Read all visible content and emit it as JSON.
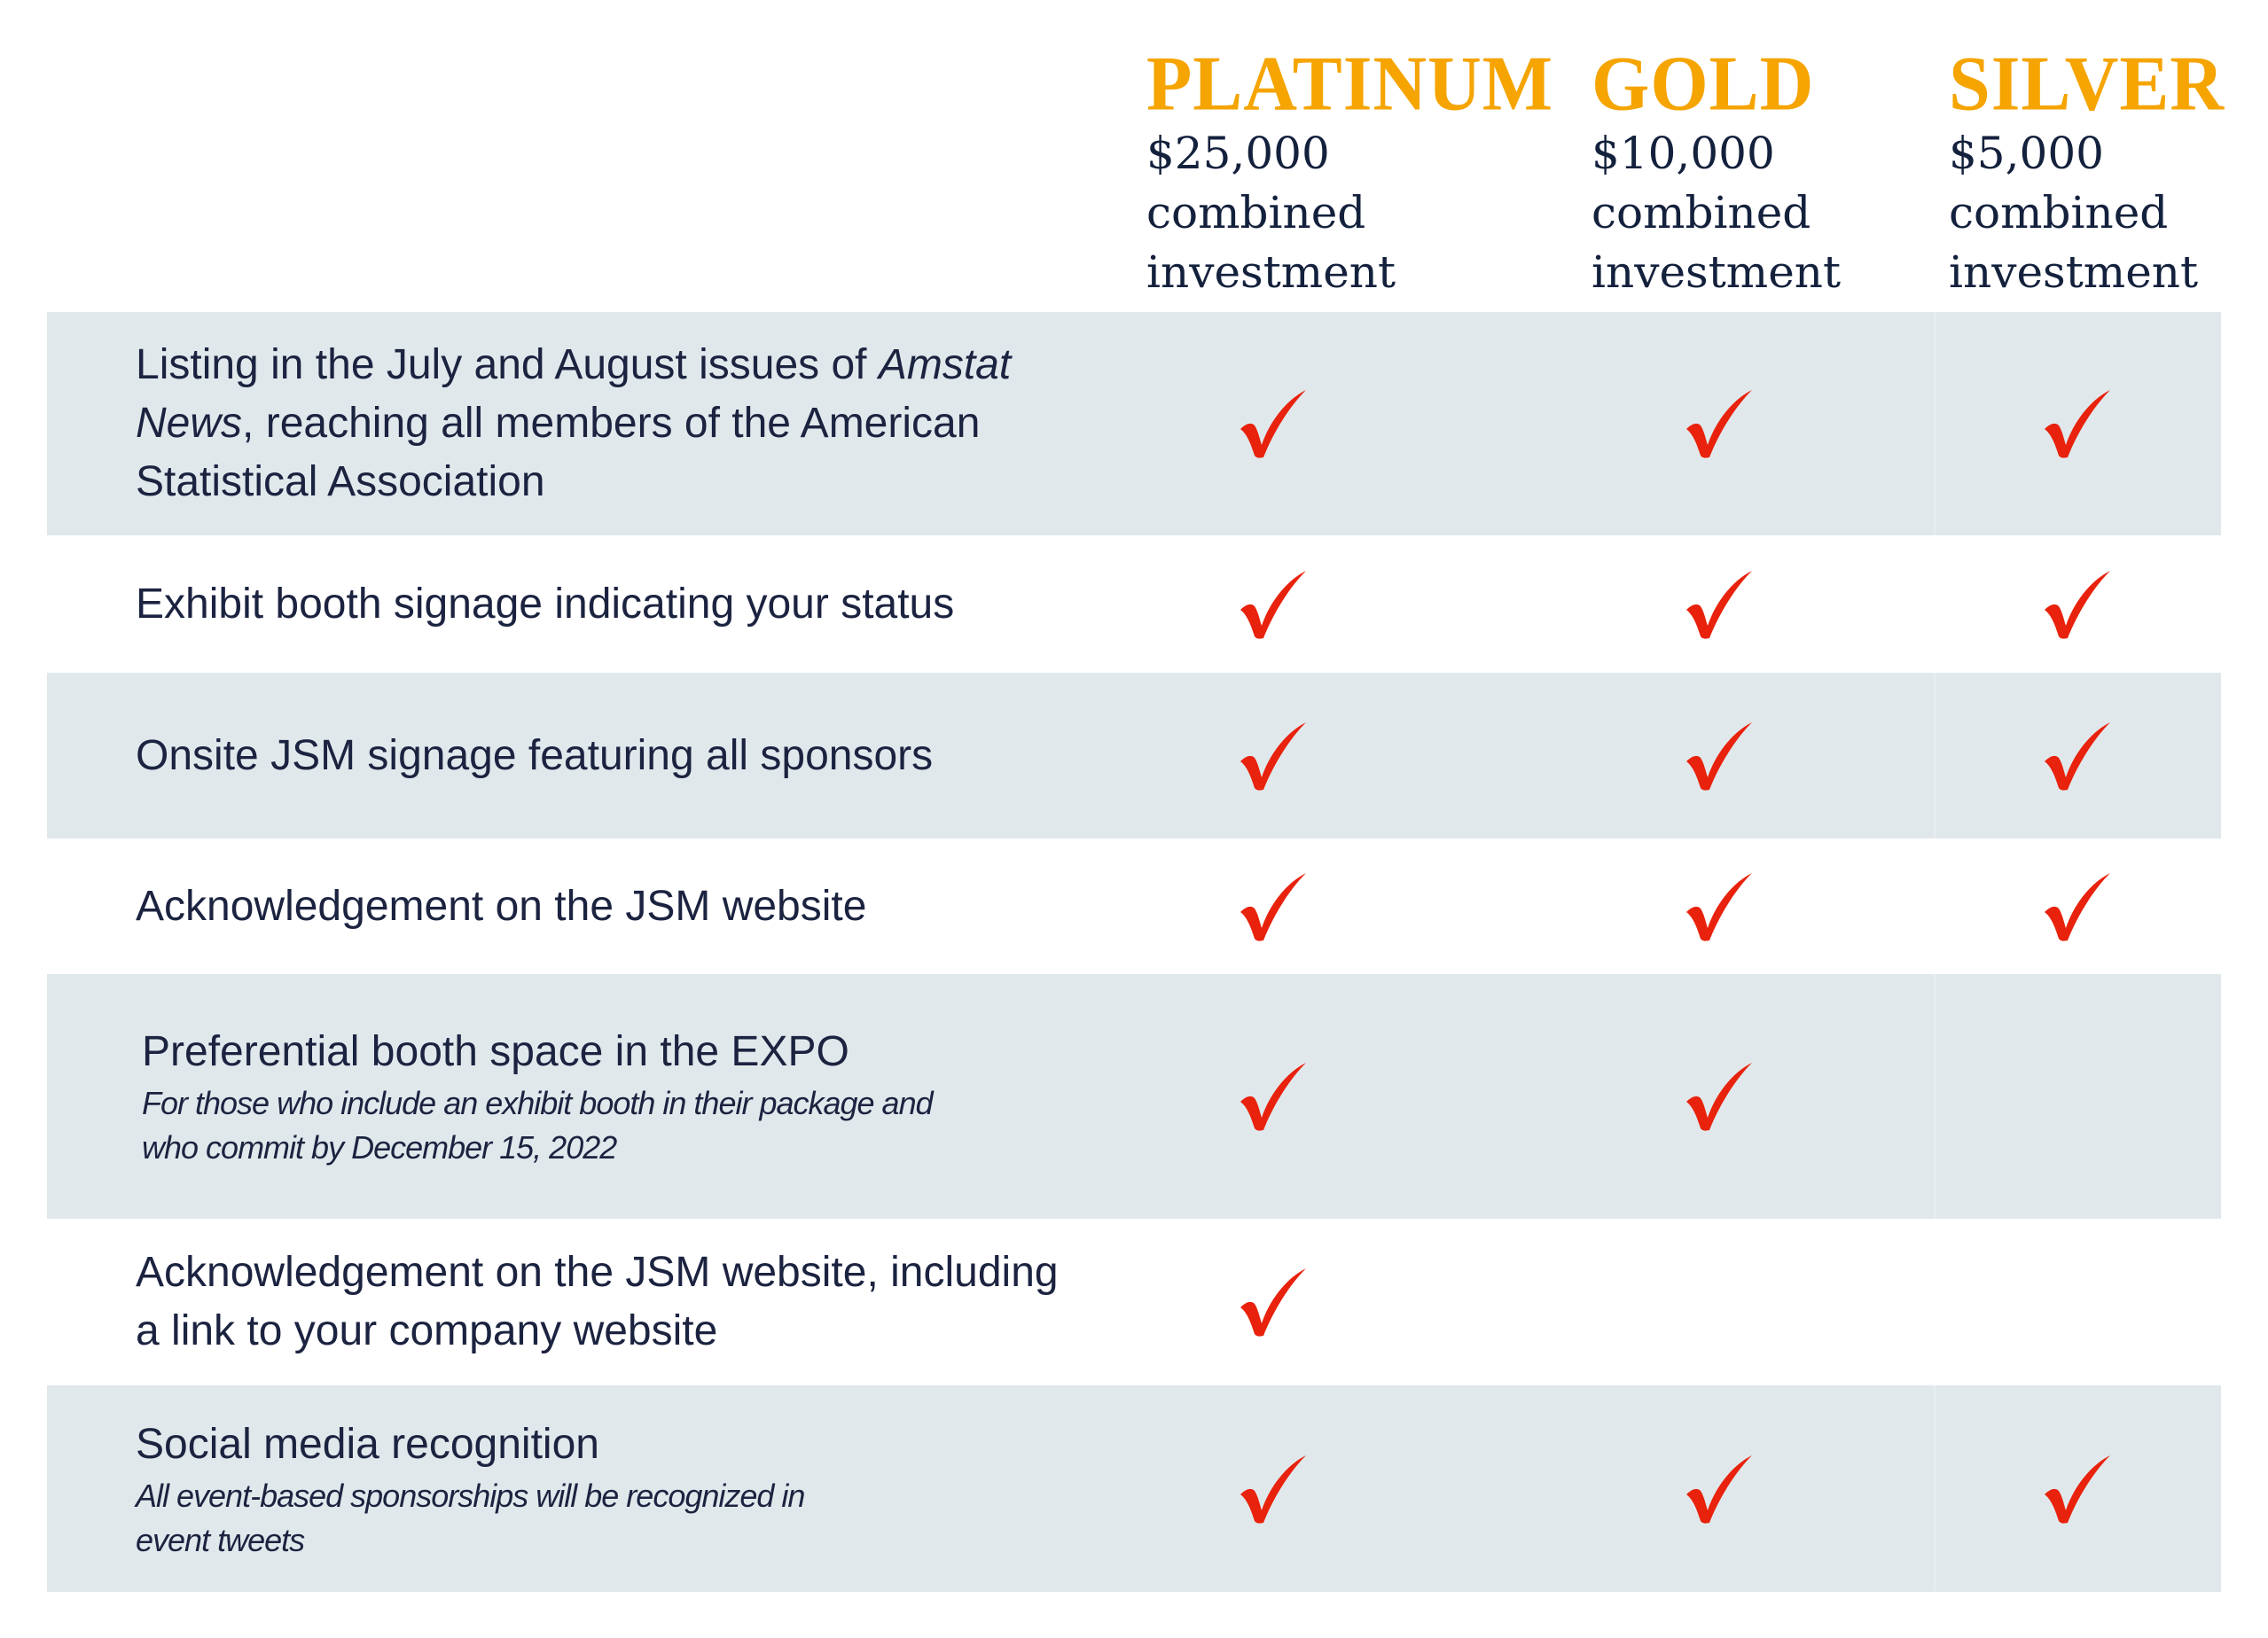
{
  "tiers": [
    {
      "name": "PLATINUM",
      "price": "$25,000",
      "line2": "combined",
      "line3": "investment"
    },
    {
      "name": "GOLD",
      "price": "$10,000",
      "line2": "combined",
      "line3": "investment"
    },
    {
      "name": "SILVER",
      "price": "$5,000",
      "line2": "combined",
      "line3": "investment"
    }
  ],
  "rows": [
    {
      "main_pre": "Listing in the July and August issues of ",
      "main_italic": "Amstat News",
      "main_post": ", reaching all members of the American Statistical Association",
      "sub": "",
      "checks": [
        true,
        true,
        true
      ]
    },
    {
      "main_pre": "Exhibit booth signage indicating your status",
      "main_italic": "",
      "main_post": "",
      "sub": "",
      "checks": [
        true,
        true,
        true
      ]
    },
    {
      "main_pre": "Onsite JSM signage featuring all sponsors",
      "main_italic": "",
      "main_post": "",
      "sub": "",
      "checks": [
        true,
        true,
        true
      ]
    },
    {
      "main_pre": "Acknowledgement on the JSM website",
      "main_italic": "",
      "main_post": "",
      "sub": "",
      "checks": [
        true,
        true,
        true
      ]
    },
    {
      "main_pre": "Preferential booth space in the EXPO",
      "main_italic": "",
      "main_post": "",
      "sub": "For those who include an exhibit booth in their package and who commit by December 15, 2022",
      "checks": [
        true,
        true,
        false
      ]
    },
    {
      "main_pre": "Acknowledgement on the JSM website, including a link to your company website",
      "main_italic": "",
      "main_post": "",
      "sub": "",
      "checks": [
        true,
        false,
        false
      ]
    },
    {
      "main_pre": "Social media recognition",
      "main_italic": "",
      "main_post": "",
      "sub": "All event-based sponsorships will be recognized in event tweets",
      "checks": [
        true,
        true,
        true
      ]
    }
  ],
  "colors": {
    "tier_name": "#f5a400",
    "check": "#e8220c",
    "row_shade": "#e1e8ec",
    "text": "#1b2340"
  },
  "icons": {
    "check": "checkmark-icon"
  }
}
